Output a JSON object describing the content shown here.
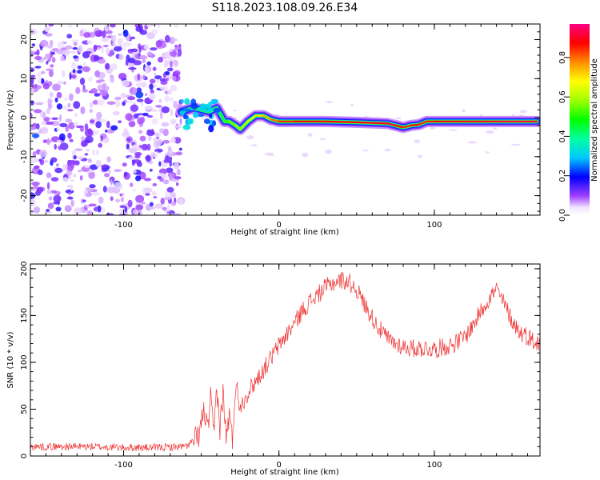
{
  "title": "S118.2023.108.09.26.E34",
  "chart_data": [
    {
      "type": "heatmap",
      "title": "",
      "xlabel": "Height of straight line (km)",
      "ylabel": "Frequency (Hz)",
      "xlim": [
        -160,
        168
      ],
      "ylim": [
        -25,
        24
      ],
      "x_ticks": [
        -100,
        0,
        100
      ],
      "x_tick_labels": [
        "-100",
        "0",
        "100"
      ],
      "y_ticks": [
        -20,
        -10,
        0,
        10,
        20
      ],
      "y_tick_labels": [
        "-20",
        "-10",
        "0",
        "10",
        "20"
      ],
      "grid": false,
      "colormap": "rainbow",
      "noise_region": {
        "x_start": -160,
        "x_end": -63,
        "level": 0.15
      },
      "ridge": {
        "x": [
          -63,
          -55,
          -50,
          -45,
          -40,
          -35,
          -32,
          -28,
          -25,
          -20,
          -15,
          -10,
          -5,
          0,
          10,
          30,
          50,
          70,
          75,
          80,
          85,
          90,
          95,
          100,
          120,
          140,
          166
        ],
        "frequency": [
          1.5,
          2.5,
          2.0,
          1.5,
          2.5,
          -1.0,
          -1.0,
          -2.0,
          -3.0,
          -1.0,
          0.5,
          0.5,
          -0.5,
          -1.0,
          -1.0,
          -1.0,
          -1.2,
          -1.5,
          -2.0,
          -2.5,
          -2.0,
          -1.8,
          -1.0,
          -1.0,
          -1.0,
          -1.0,
          -1.0
        ],
        "amplitude": [
          0.35,
          0.3,
          0.35,
          0.3,
          0.4,
          0.5,
          0.55,
          0.6,
          0.6,
          0.65,
          0.7,
          0.75,
          0.8,
          0.85,
          0.9,
          0.92,
          0.9,
          0.95,
          0.95,
          0.85,
          0.9,
          0.9,
          0.85,
          0.92,
          0.92,
          0.95,
          0.95
        ]
      },
      "colorbar": {
        "label": "Normalized spectral amplitude",
        "ticks": [
          0,
          0.2,
          0.4,
          0.6,
          0.8
        ],
        "tick_labels": [
          "0.0",
          "0.2",
          "0.4",
          "0.6",
          "0.8"
        ],
        "range": [
          0,
          0.97
        ]
      }
    },
    {
      "type": "line",
      "title": "",
      "xlabel": "Height of straight line (km)",
      "ylabel": "SNR (10 * v/v)",
      "xlim": [
        -160,
        168
      ],
      "ylim": [
        0,
        205
      ],
      "x_ticks": [
        -100,
        0,
        100
      ],
      "x_tick_labels": [
        "-100",
        "0",
        "100"
      ],
      "y_ticks": [
        0,
        50,
        100,
        150,
        200
      ],
      "y_tick_labels": [
        "0",
        "50",
        "100",
        "150",
        "200"
      ],
      "grid": false,
      "series": [
        {
          "color": "#ee3333",
          "x": [
            -160,
            -140,
            -120,
            -100,
            -80,
            -60,
            -52,
            -48,
            -46,
            -44,
            -42,
            -40,
            -38,
            -36,
            -34,
            -32,
            -30,
            -28,
            -26,
            -24,
            -20,
            -15,
            -10,
            -5,
            0,
            5,
            10,
            15,
            20,
            25,
            30,
            35,
            40,
            45,
            50,
            55,
            60,
            65,
            70,
            75,
            80,
            85,
            90,
            95,
            100,
            105,
            110,
            115,
            120,
            125,
            130,
            135,
            140,
            145,
            150,
            155,
            160,
            166
          ],
          "y": [
            10,
            10,
            10,
            9,
            9,
            10,
            20,
            50,
            25,
            60,
            22,
            75,
            28,
            68,
            18,
            45,
            15,
            78,
            60,
            55,
            68,
            80,
            92,
            105,
            118,
            130,
            142,
            155,
            165,
            172,
            180,
            185,
            188,
            186,
            178,
            162,
            148,
            135,
            125,
            120,
            117,
            115,
            115,
            115,
            114,
            116,
            118,
            122,
            128,
            140,
            155,
            168,
            178,
            162,
            145,
            132,
            128,
            120
          ]
        }
      ]
    }
  ]
}
